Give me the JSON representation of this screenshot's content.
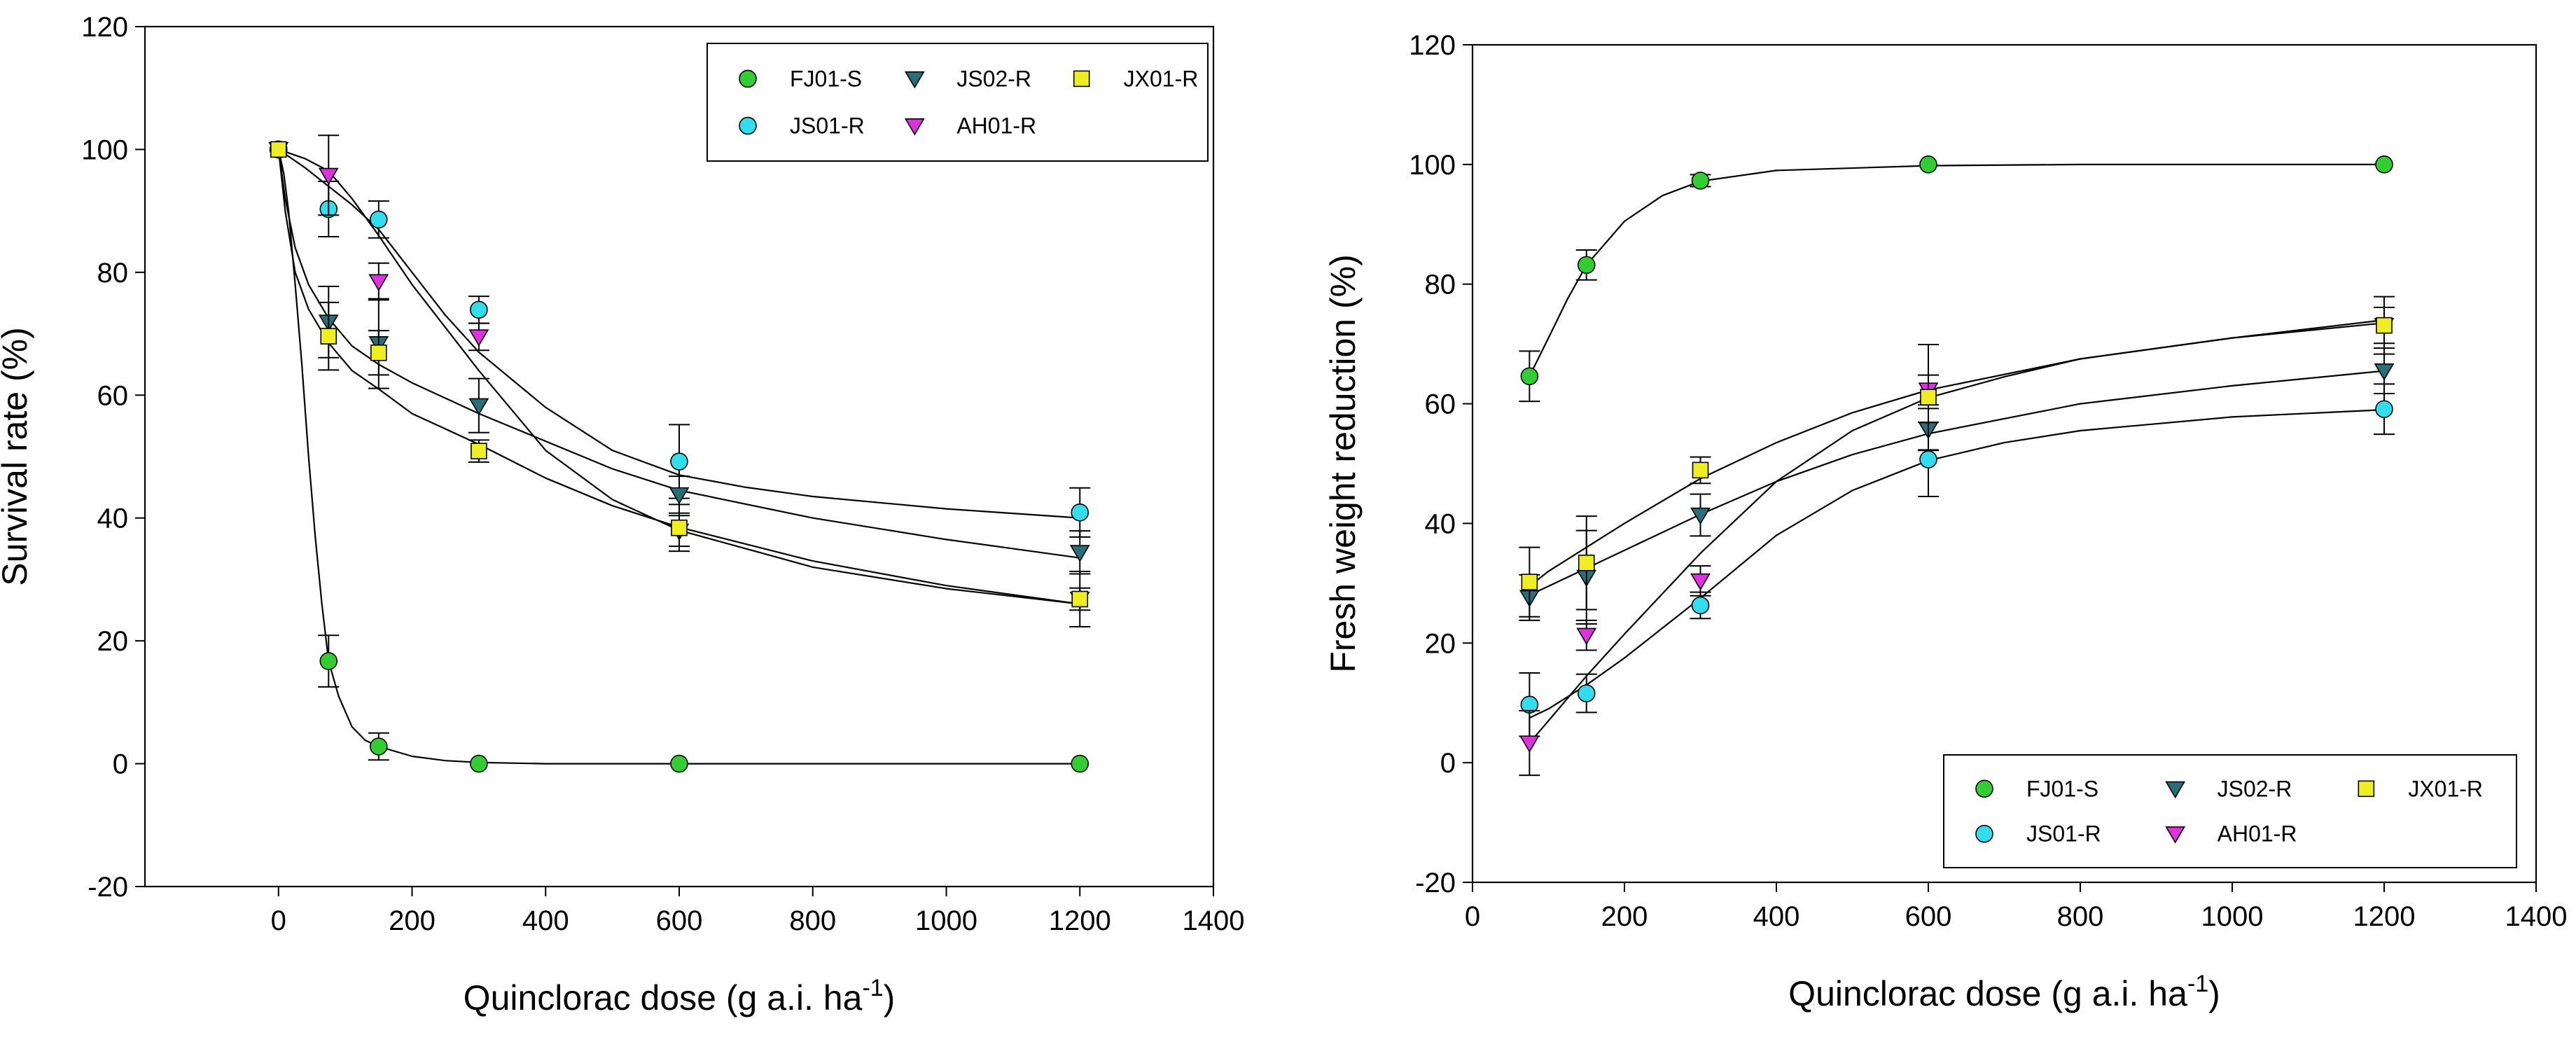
{
  "colors": {
    "FJ01-S": "#33cc33",
    "JS01-R": "#33ddee",
    "JS02-R": "#2a6e78",
    "AH01-R": "#dd33dd",
    "JX01-R": "#eeee22",
    "curve": "#000000",
    "axis": "#000000"
  },
  "markers": {
    "FJ01-S": "circle",
    "JS01-R": "circle",
    "JS02-R": "triangle-down",
    "AH01-R": "triangle-down",
    "JX01-R": "square"
  },
  "chart_data": [
    {
      "type": "scatter",
      "title": "",
      "xlabel": "Quinclorac dose (g a.i. ha",
      "xlabel_sup": "-1",
      "xlabel_end": ")",
      "ylabel": "Survival rate (%)",
      "xlim": [
        -200,
        1400
      ],
      "ylim": [
        -20,
        120
      ],
      "xticks": [
        0,
        200,
        400,
        600,
        800,
        1000,
        1200,
        1400
      ],
      "yticks": [
        -20,
        0,
        20,
        40,
        60,
        80,
        100,
        120
      ],
      "grid": false,
      "legend_position": "top-right",
      "legend_layout": [
        [
          "FJ01-S",
          "JS02-R",
          "JX01-R"
        ],
        [
          "JS01-R",
          "AH01-R"
        ]
      ],
      "x": [
        0,
        75,
        150,
        300,
        600,
        1200
      ],
      "series": [
        {
          "name": "FJ01-S",
          "values": [
            100,
            16.7,
            2.8,
            0,
            0,
            0
          ],
          "errors": [
            0,
            4.2,
            2.2,
            0,
            0,
            0
          ],
          "fit": [
            [
              0,
              100
            ],
            [
              8,
              96
            ],
            [
              15,
              90
            ],
            [
              25,
              78
            ],
            [
              35,
              65
            ],
            [
              45,
              50
            ],
            [
              55,
              37
            ],
            [
              65,
              26
            ],
            [
              75,
              16.7
            ],
            [
              90,
              11
            ],
            [
              110,
              6
            ],
            [
              130,
              3.8
            ],
            [
              150,
              2.8
            ],
            [
              200,
              1.2
            ],
            [
              250,
              0.5
            ],
            [
              300,
              0.2
            ],
            [
              400,
              0
            ],
            [
              600,
              0
            ],
            [
              1200,
              0
            ]
          ]
        },
        {
          "name": "JS01-R",
          "values": [
            100,
            90.3,
            88.6,
            73.9,
            49.2,
            40.9
          ],
          "errors": [
            0,
            4.5,
            3.0,
            2.2,
            6.0,
            4.0
          ],
          "fit": [
            [
              0,
              100
            ],
            [
              40,
              97
            ],
            [
              75,
              94
            ],
            [
              110,
              91
            ],
            [
              150,
              87
            ],
            [
              200,
              80
            ],
            [
              250,
              73
            ],
            [
              300,
              67
            ],
            [
              400,
              58
            ],
            [
              500,
              51
            ],
            [
              600,
              47
            ],
            [
              700,
              45
            ],
            [
              800,
              43.5
            ],
            [
              1000,
              41.5
            ],
            [
              1200,
              40
            ]
          ]
        },
        {
          "name": "JS02-R",
          "values": [
            100,
            71.9,
            68.4,
            58.3,
            43.8,
            34.4
          ],
          "errors": [
            0,
            5.8,
            7.3,
            4.4,
            3.0,
            3.5
          ],
          "fit": [
            [
              0,
              100
            ],
            [
              10,
              92
            ],
            [
              25,
              84
            ],
            [
              45,
              78
            ],
            [
              75,
              72.5
            ],
            [
              110,
              68
            ],
            [
              150,
              65
            ],
            [
              200,
              62
            ],
            [
              300,
              57
            ],
            [
              400,
              52.5
            ],
            [
              500,
              48
            ],
            [
              600,
              44.5
            ],
            [
              800,
              40
            ],
            [
              1000,
              36.5
            ],
            [
              1200,
              33.5
            ]
          ]
        },
        {
          "name": "AH01-R",
          "values": [
            100,
            95.8,
            78.5,
            69.5,
            37.9,
            26.8
          ],
          "errors": [
            0,
            6.5,
            3.0,
            2.2,
            2.5,
            1.8
          ],
          "fit": [
            [
              0,
              100
            ],
            [
              40,
              98.5
            ],
            [
              75,
              96.5
            ],
            [
              110,
              92
            ],
            [
              150,
              86
            ],
            [
              200,
              78
            ],
            [
              250,
              71
            ],
            [
              300,
              64
            ],
            [
              400,
              51
            ],
            [
              500,
              43
            ],
            [
              600,
              38
            ],
            [
              700,
              35
            ],
            [
              800,
              32
            ],
            [
              1000,
              28.5
            ],
            [
              1200,
              26
            ]
          ]
        },
        {
          "name": "JX01-R",
          "values": [
            100,
            69.6,
            66.9,
            50.9,
            38.4,
            26.8
          ],
          "errors": [
            0,
            5.5,
            3.6,
            1.8,
            3.8,
            4.5
          ],
          "fit": [
            [
              0,
              100
            ],
            [
              10,
              90
            ],
            [
              25,
              80
            ],
            [
              45,
              74
            ],
            [
              75,
              68.5
            ],
            [
              110,
              64
            ],
            [
              150,
              61
            ],
            [
              200,
              57
            ],
            [
              300,
              52
            ],
            [
              400,
              46.5
            ],
            [
              500,
              42
            ],
            [
              600,
              38.5
            ],
            [
              800,
              33
            ],
            [
              1000,
              29
            ],
            [
              1200,
              26
            ]
          ]
        }
      ]
    },
    {
      "type": "scatter",
      "title": "",
      "xlabel": "Quinclorac dose (g a.i. ha",
      "xlabel_sup": "-1",
      "xlabel_end": ")",
      "ylabel": "Fresh weight reduction (%)",
      "xlim": [
        0,
        1400
      ],
      "ylim": [
        -20,
        120
      ],
      "xticks": [
        0,
        200,
        400,
        600,
        800,
        1000,
        1200,
        1400
      ],
      "yticks": [
        -20,
        0,
        20,
        40,
        60,
        80,
        100,
        120
      ],
      "grid": false,
      "legend_position": "bottom-right",
      "legend_layout": [
        [
          "FJ01-S",
          "JS02-R",
          "JX01-R"
        ],
        [
          "JS01-R",
          "AH01-R"
        ]
      ],
      "x": [
        75,
        150,
        300,
        600,
        1200
      ],
      "series": [
        {
          "name": "FJ01-S",
          "values": [
            64.6,
            83.2,
            97.3,
            100,
            100
          ],
          "errors": [
            4.2,
            2.5,
            1.0,
            0,
            0
          ],
          "fit": [
            [
              75,
              64.6
            ],
            [
              100,
              71
            ],
            [
              125,
              77.5
            ],
            [
              150,
              83.2
            ],
            [
              200,
              90.5
            ],
            [
              250,
              94.8
            ],
            [
              300,
              97.2
            ],
            [
              400,
              99
            ],
            [
              600,
              99.8
            ],
            [
              800,
              100
            ],
            [
              1200,
              100
            ]
          ]
        },
        {
          "name": "JS01-R",
          "values": [
            9.7,
            11.6,
            26.3,
            50.7,
            59.1
          ],
          "errors": [
            5.3,
            3.2,
            2.2,
            6.2,
            4.2
          ],
          "fit": [
            [
              75,
              7.5
            ],
            [
              100,
              9
            ],
            [
              150,
              13
            ],
            [
              200,
              17.5
            ],
            [
              300,
              27.5
            ],
            [
              400,
              38
            ],
            [
              500,
              45.5
            ],
            [
              600,
              50.5
            ],
            [
              700,
              53.5
            ],
            [
              800,
              55.5
            ],
            [
              1000,
              57.8
            ],
            [
              1200,
              59
            ]
          ]
        },
        {
          "name": "JS02-R",
          "values": [
            27.6,
            31.0,
            41.4,
            55.7,
            65.5
          ],
          "errors": [
            3.8,
            7.8,
            3.5,
            3.5,
            3.8
          ],
          "fit": [
            [
              75,
              28
            ],
            [
              100,
              29.5
            ],
            [
              150,
              32.5
            ],
            [
              200,
              35.5
            ],
            [
              300,
              41.5
            ],
            [
              400,
              47
            ],
            [
              500,
              51.5
            ],
            [
              600,
              55
            ],
            [
              800,
              60
            ],
            [
              1000,
              63
            ],
            [
              1200,
              65.5
            ]
          ]
        },
        {
          "name": "AH01-R",
          "values": [
            3.3,
            21.3,
            30.4,
            62.3,
            73.1
          ],
          "errors": [
            5.4,
            2.5,
            2.5,
            2.5,
            3.0
          ],
          "fit": [
            [
              75,
              3.3
            ],
            [
              100,
              7
            ],
            [
              150,
              14.5
            ],
            [
              200,
              21.5
            ],
            [
              300,
              35
            ],
            [
              400,
              47
            ],
            [
              500,
              55.5
            ],
            [
              600,
              61
            ],
            [
              700,
              64.5
            ],
            [
              800,
              67.5
            ],
            [
              1000,
              71
            ],
            [
              1200,
              73.5
            ]
          ]
        },
        {
          "name": "JX01-R",
          "values": [
            30.2,
            33.4,
            48.9,
            61.1,
            73.1
          ],
          "errors": [
            5.8,
            7.8,
            2.2,
            8.8,
            4.8
          ],
          "fit": [
            [
              75,
              29.5
            ],
            [
              100,
              32
            ],
            [
              150,
              36
            ],
            [
              200,
              40
            ],
            [
              300,
              47.5
            ],
            [
              400,
              53.5
            ],
            [
              500,
              58.5
            ],
            [
              600,
              62.3
            ],
            [
              800,
              67.5
            ],
            [
              1000,
              71
            ],
            [
              1200,
              74
            ]
          ]
        }
      ]
    }
  ]
}
